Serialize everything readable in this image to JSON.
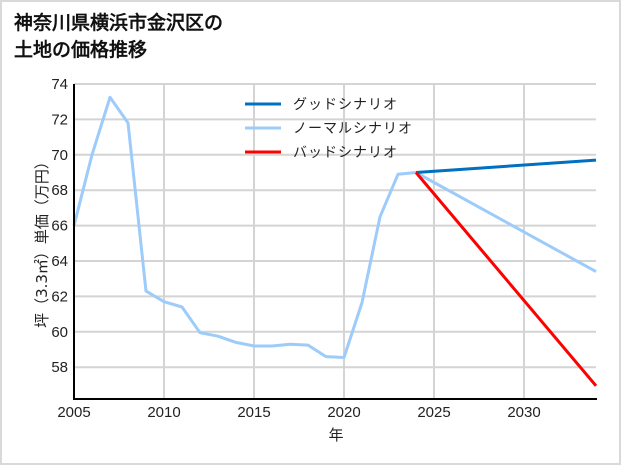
{
  "title_line1": "神奈川県横浜市金沢区の",
  "title_line2": "土地の価格推移",
  "chart_data": {
    "type": "line",
    "title": "神奈川県横浜市金沢区の土地の価格推移",
    "xlabel": "年",
    "ylabel": "坪（3.3㎡）単価（万円）",
    "xlim": [
      2005,
      2034
    ],
    "ylim": [
      56.5,
      74
    ],
    "x_ticks": [
      2005,
      2010,
      2015,
      2020,
      2025,
      2030
    ],
    "y_ticks": [
      58,
      60,
      62,
      64,
      66,
      68,
      70,
      72,
      74
    ],
    "grid": true,
    "legend_position": "upper center",
    "series": [
      {
        "name": "グッドシナリオ",
        "color": "#0070c0",
        "x": [
          2024,
          2034
        ],
        "values": [
          69.0,
          69.7
        ]
      },
      {
        "name": "ノーマルシナリオ",
        "color": "#9dcbfa",
        "x": [
          2005,
          2006,
          2007,
          2008,
          2009,
          2010,
          2011,
          2012,
          2013,
          2014,
          2015,
          2016,
          2017,
          2018,
          2019,
          2020,
          2021,
          2022,
          2023,
          2024,
          2034
        ],
        "values": [
          66.0,
          70.0,
          73.25,
          71.8,
          62.3,
          61.7,
          61.4,
          59.95,
          59.75,
          59.4,
          59.2,
          59.2,
          59.3,
          59.25,
          58.6,
          58.55,
          61.65,
          66.5,
          68.9,
          69.0,
          63.4
        ]
      },
      {
        "name": "バッドシナリオ",
        "color": "#ff0000",
        "x": [
          2024,
          2034
        ],
        "values": [
          69.0,
          56.95
        ]
      }
    ]
  }
}
